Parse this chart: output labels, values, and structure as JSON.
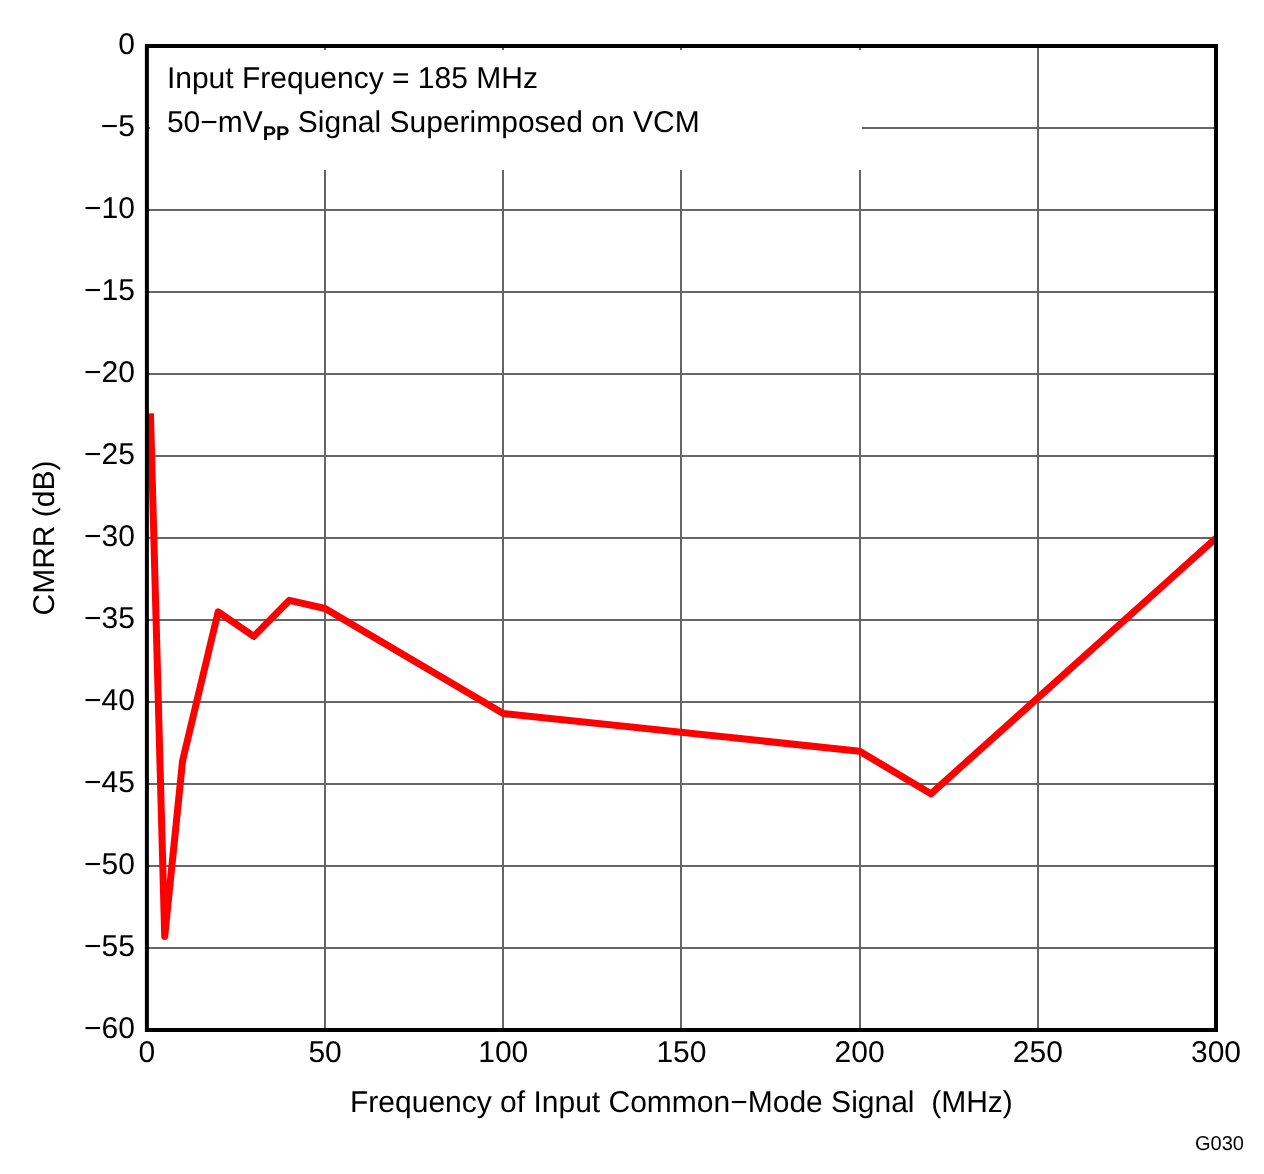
{
  "chart_data": {
    "type": "line",
    "xlabel": "Frequency of Input Common−Mode Signal  (MHz)",
    "ylabel": "CMRR (dB)",
    "x": [
      1,
      5,
      10,
      20,
      30,
      40,
      50,
      100,
      200,
      220,
      300
    ],
    "series": [
      {
        "color": "#ff0000",
        "values": [
          -22.4,
          -54.3,
          -43.6,
          -34.5,
          -36,
          -33.8,
          -34.3,
          -40.7,
          -43,
          -45.6,
          -30
        ]
      }
    ],
    "xlim": [
      0,
      300
    ],
    "xticks": [
      0,
      50,
      100,
      150,
      200,
      250,
      300
    ],
    "ylim": [
      -60,
      0
    ],
    "yticks": [
      0,
      -5,
      -10,
      -15,
      -20,
      -25,
      -30,
      -35,
      -40,
      -45,
      -50,
      -55,
      -60
    ],
    "grid": true,
    "legend": false,
    "marker": "none",
    "line_style": "solid",
    "annotations": [
      "Input Frequency = 185 MHz",
      "50−mV$_{PP}$ Signal Superimposed on VCM",
      "G030"
    ]
  }
}
